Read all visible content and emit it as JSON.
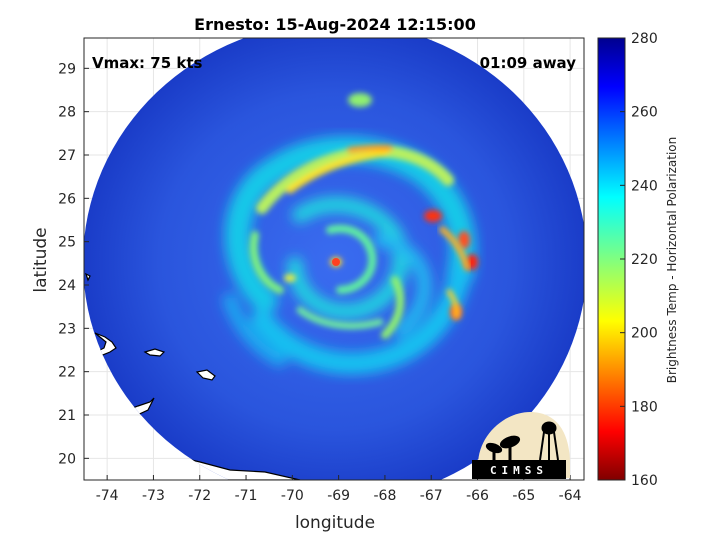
{
  "title": "Ernesto: 15-Aug-2024 12:15:00",
  "vmax_label": "Vmax: 75 kts",
  "time_offset_label": "01:09 away",
  "xlabel": "longitude",
  "ylabel": "latitude",
  "colorbar_label": "Brightness Temp - Horizontal Polarization",
  "logo_text": "CIMSS",
  "map_data": {
    "x_ticks": [
      "-74",
      "-73",
      "-72",
      "-71",
      "-70",
      "-69",
      "-68",
      "-67",
      "-66",
      "-65",
      "-64"
    ],
    "y_ticks": [
      "29",
      "28",
      "27",
      "26",
      "25",
      "24",
      "23",
      "22",
      "21",
      "20"
    ],
    "xlim": [
      -74.5,
      -63.7
    ],
    "ylim": [
      19.5,
      29.7
    ],
    "storm_center": [
      -69.0,
      24.5
    ],
    "colorbar": {
      "ticks": [
        "280",
        "260",
        "240",
        "220",
        "200",
        "180",
        "160"
      ],
      "range": [
        160,
        280
      ],
      "colormap": "jet",
      "colors": [
        "#800000",
        "#ff0000",
        "#ff8000",
        "#ffff00",
        "#80ff80",
        "#00ffff",
        "#0080ff",
        "#0000ff",
        "#00008f"
      ]
    }
  },
  "colors": {
    "background_ocean": "#2244cc",
    "axes_line": "#262626",
    "grid": "#e6e6e6"
  }
}
